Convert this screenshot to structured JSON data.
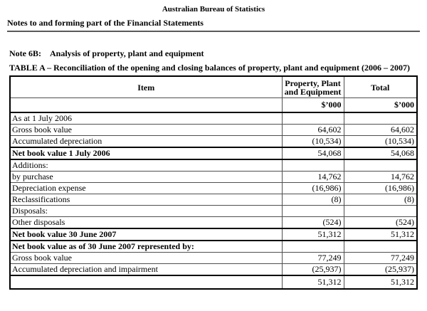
{
  "header": {
    "org_title": "Australian Bureau of Statistics",
    "doc_title": "Notes to and forming part of the Financial Statements"
  },
  "note": {
    "label": "Note 6B:",
    "title": "Analysis of property, plant and equipment",
    "table_caption": "TABLE A – Reconciliation of the opening and closing balances of property, plant and equipment (2006 – 2007)"
  },
  "table": {
    "columns": [
      "Item",
      "Property, Plant and Equipment",
      "Total"
    ],
    "unit_row": {
      "ppe": "$’000",
      "total": "$’000"
    },
    "rows": [
      {
        "label": "As at 1 July 2006",
        "ppe": "",
        "total": "",
        "style": "normal"
      },
      {
        "label": "Gross book value",
        "ppe": "64,602",
        "total": "64,602",
        "style": "normal"
      },
      {
        "label": "Accumulated depreciation",
        "ppe": "(10,534)",
        "total": "(10,534)",
        "style": "normal"
      },
      {
        "label": "Net book value 1 July 2006",
        "ppe": "54,068",
        "total": "54,068",
        "style": "subtotal"
      },
      {
        "label": "Additions:",
        "ppe": "",
        "total": "",
        "style": "normal"
      },
      {
        "label": "by purchase",
        "ppe": "14,762",
        "total": "14,762",
        "style": "normal"
      },
      {
        "label": "Depreciation expense",
        "ppe": "(16,986)",
        "total": "(16,986)",
        "style": "normal"
      },
      {
        "label": "Reclassifications",
        "ppe": "(8)",
        "total": "(8)",
        "style": "normal"
      },
      {
        "label": "Disposals:",
        "ppe": "",
        "total": "",
        "style": "normal"
      },
      {
        "label": "Other disposals",
        "ppe": "(524)",
        "total": "(524)",
        "style": "normal"
      },
      {
        "label": "Net book value 30 June 2007",
        "ppe": "51,312",
        "total": "51,312",
        "style": "subtotal"
      },
      {
        "label": "Net book value as of 30 June 2007 represented by:",
        "ppe": "",
        "total": "",
        "style": "boldlabel"
      },
      {
        "label": "Gross book value",
        "ppe": "77,249",
        "total": "77,249",
        "style": "normal"
      },
      {
        "label": "Accumulated depreciation and impairment",
        "ppe": "(25,937)",
        "total": "(25,937)",
        "style": "normal"
      },
      {
        "label": "",
        "ppe": "51,312",
        "total": "51,312",
        "style": "final"
      }
    ]
  }
}
